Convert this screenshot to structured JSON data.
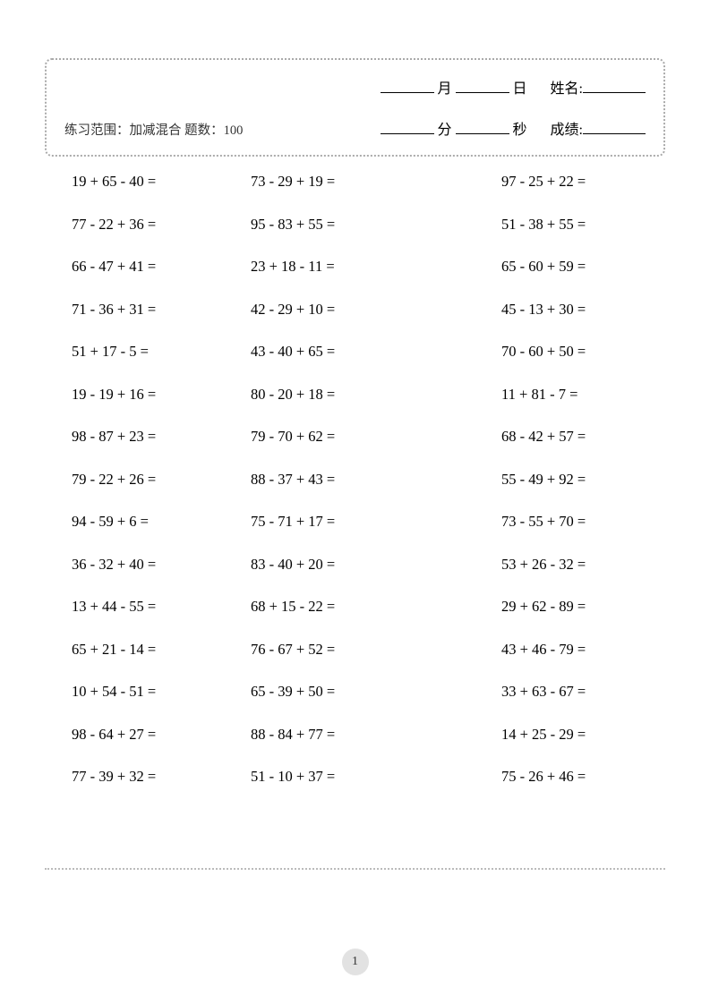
{
  "header": {
    "month_label": "月",
    "day_label": "日",
    "name_label": "姓名:",
    "minute_label": "分",
    "second_label": "秒",
    "score_label": "成绩:",
    "range_label": "练习范围：加减混合  题数：100"
  },
  "problems": [
    [
      "19 + 65 - 40 =",
      "73 - 29 + 19 =",
      "97 - 25 + 22 ="
    ],
    [
      "77 - 22 + 36 =",
      "95 - 83 + 55 =",
      "51 - 38 + 55 ="
    ],
    [
      "66 - 47 + 41 =",
      "23 + 18 - 11 =",
      "65 - 60 + 59 ="
    ],
    [
      "71 - 36 + 31 =",
      "42 - 29 + 10 =",
      "45 - 13 + 30 ="
    ],
    [
      "51 + 17 - 5 =",
      "43 - 40 + 65 =",
      "70 - 60 + 50 ="
    ],
    [
      "19 - 19 + 16 =",
      "80 - 20 + 18 =",
      "11 + 81 - 7 ="
    ],
    [
      "98 - 87 + 23 =",
      "79 - 70 + 62 =",
      "68 - 42 + 57 ="
    ],
    [
      "79 - 22 + 26 =",
      "88 - 37 + 43 =",
      "55 - 49 + 92 ="
    ],
    [
      "94 - 59 + 6 =",
      "75 - 71 + 17 =",
      "73 - 55 + 70 ="
    ],
    [
      "36 - 32 + 40 =",
      "83 - 40 + 20 =",
      "53 + 26 - 32 ="
    ],
    [
      "13 + 44 - 55 =",
      "68 + 15 - 22 =",
      "29 + 62 - 89 ="
    ],
    [
      "65 + 21 - 14 =",
      "76 - 67 + 52 =",
      "43 + 46 - 79 ="
    ],
    [
      "10 + 54 - 51 =",
      "65 - 39 + 50 =",
      "33 + 63 - 67 ="
    ],
    [
      "98 - 64 + 27 =",
      "88 - 84 + 77 =",
      "14 + 25 - 29 ="
    ],
    [
      "77 - 39 + 32 =",
      "51 - 10 + 37 =",
      "75 - 26 + 46 ="
    ]
  ],
  "page_number": "1",
  "style": {
    "page_bg": "#ffffff",
    "border_color": "#aaaaaa",
    "text_color": "#000000",
    "muted_text": "#333333",
    "divider_color": "#bbbbbb",
    "pagenum_bg": "#e2e2e2",
    "body_fontsize": 16.5,
    "header_fontsize": 16,
    "info_fontsize": 14.5
  }
}
